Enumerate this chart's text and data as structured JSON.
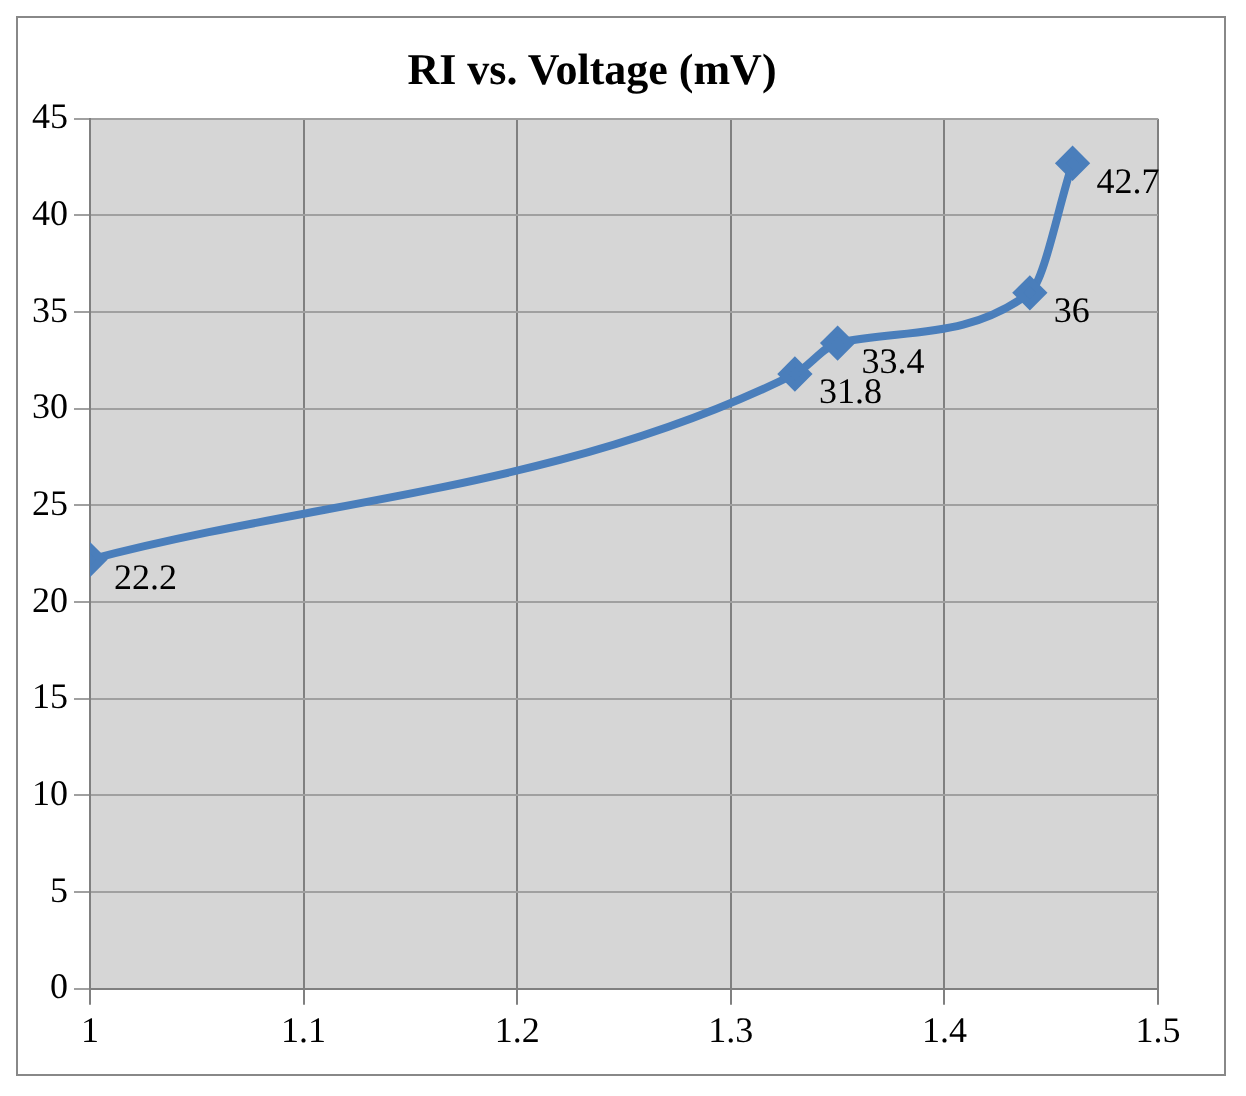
{
  "chart_data": {
    "type": "line",
    "title": "RI vs. Voltage (mV)",
    "x": [
      1,
      1.33,
      1.35,
      1.44,
      1.46
    ],
    "series": [
      {
        "color": "#4a7ebb",
        "values": [
          22.2,
          31.8,
          33.4,
          36,
          42.7
        ]
      }
    ],
    "xlim": [
      1,
      1.5
    ],
    "xticks": [
      1,
      1.1,
      1.2,
      1.3,
      1.4,
      1.5
    ],
    "ylim": [
      0,
      45
    ],
    "yticks": [
      0,
      5,
      10,
      15,
      20,
      25,
      30,
      35,
      40,
      45
    ],
    "grid": true,
    "legend": false,
    "marker": "diamond",
    "line_style": "solid",
    "data_labels": true
  }
}
